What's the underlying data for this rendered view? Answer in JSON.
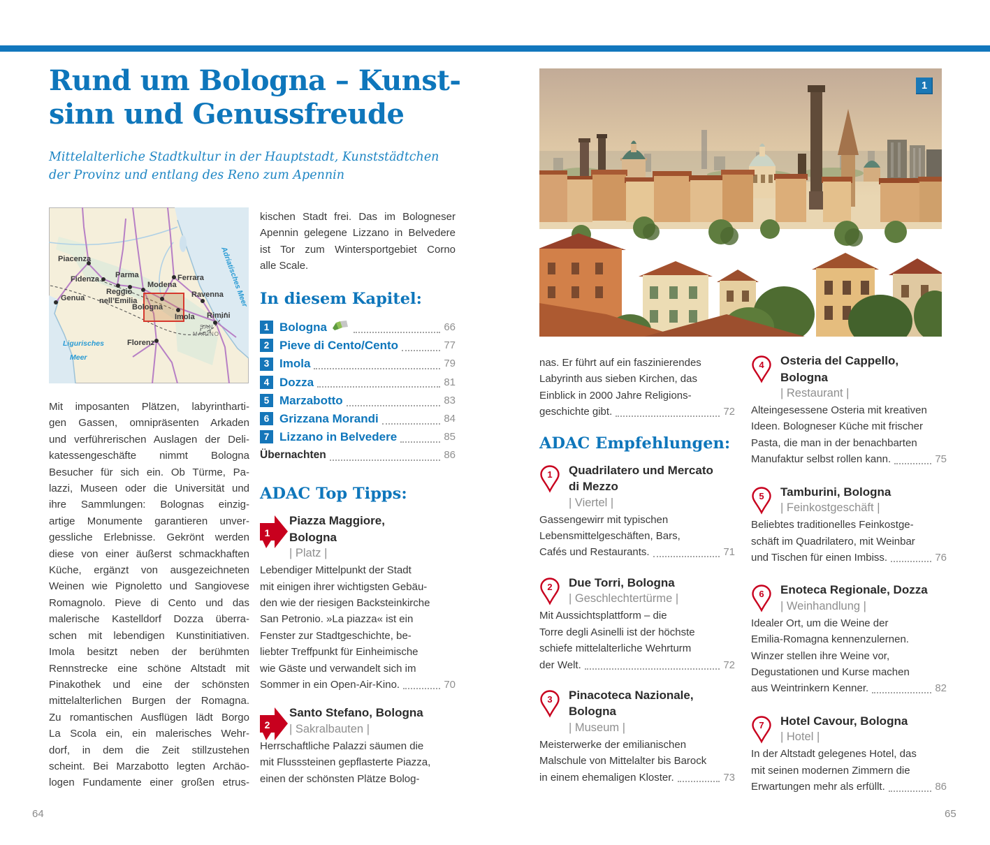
{
  "colors": {
    "accent_blue": "#0e76bb",
    "bar_blue": "#1277bd",
    "chapter_badge_blue": "#1576b9",
    "badge_red": "#c8001e",
    "body_text": "#3a3a3a",
    "muted_gray": "#8f8f8f"
  },
  "icons": {
    "chapter_map_icon": "folded-map",
    "tip_marker": "red-arrow-right",
    "rec_marker": "red-location-pin",
    "photo_badge": "blue-number-square"
  },
  "page": {
    "left_number": "64",
    "right_number": "65"
  },
  "header": {
    "title_lines": [
      "Rund um Bologna – Kunst-",
      "sinn und Genussfreude"
    ],
    "subtitle_lines": [
      "Mittelalterliche Stadtkultur in der Hauptstadt, Kunststädtchen",
      "der Provinz und entlang des Reno zum Apennin"
    ]
  },
  "map": {
    "cities": {
      "piacenza": "Piacenza",
      "fidenza": "Fidenza",
      "parma": "Parma",
      "reggio_line1": "Reggio",
      "reggio_line2": "nell’Emilia",
      "modena": "Modena",
      "ferrara": "Ferrara",
      "genua": "Genua",
      "bologna": "Bologna",
      "imola": "Imola",
      "ravenna": "Ravenna",
      "rimini": "Rimini",
      "florenz": "Florenz",
      "san_marino_line1": "SAN",
      "san_marino_line2": "MARINO"
    },
    "seas": {
      "adriatic": "Adriatisches Meer",
      "ligurian_line1": "Ligurisches",
      "ligurian_line2": "Meer"
    }
  },
  "intro": {
    "left_column_lines": [
      "Mit imposanten Plätzen, labyrintharti-",
      "gen Gassen, omnipräsenten Arkaden",
      "und verführerischen Auslagen der Deli-",
      "katessengeschäfte nimmt Bologna",
      "Besucher für sich ein. Ob Türme, Pa-",
      "lazzi, Museen oder die Universität und",
      "ihre Sammlungen: Bolognas einzig-",
      "artige Monumente garantieren unver-",
      "gessliche Erlebnisse. Gekrönt werden",
      "diese von einer äußerst schmackhaften",
      "Küche, ergänzt von ausgezeichneten",
      "Weinen wie Pignoletto und Sangiovese",
      "Romagnolo. Pieve di Cento und das",
      "malerische Kastelldorf Dozza überra-",
      "schen mit lebendigen Kunstinitiativen.",
      "Imola besitzt neben der berühmten",
      "Rennstrecke eine schöne Altstadt mit",
      "Pinakothek und eine der schönsten",
      "mittelalterlichen Burgen der Romagna.",
      "Zu romantischen Ausflügen lädt Borgo",
      "La Scola ein, ein malerisches Wehr-",
      "dorf, in dem die Zeit stillzustehen",
      "scheint. Bei Marzabotto legten Archäo-",
      "logen Fundamente einer großen etrus-"
    ],
    "middle_column_lines": [
      "kischen Stadt frei. Das im Bologneser",
      "Apennin gelegene Lizzano in Belvedere",
      "ist Tor zum Wintersportgebiet Corno",
      "alle Scale."
    ]
  },
  "chapter": {
    "heading": "In diesem Kapitel:",
    "items": [
      {
        "num": "1",
        "label": "Bologna",
        "page": "66"
      },
      {
        "num": "2",
        "label": "Pieve di Cento/Cento",
        "page": "77"
      },
      {
        "num": "3",
        "label": "Imola",
        "page": "79"
      },
      {
        "num": "4",
        "label": "Dozza",
        "page": "81"
      },
      {
        "num": "5",
        "label": "Marzabotto",
        "page": "83"
      },
      {
        "num": "6",
        "label": "Grizzana Morandi",
        "page": "84"
      },
      {
        "num": "7",
        "label": "Lizzano in Belvedere",
        "page": "85"
      }
    ],
    "extra_item": {
      "label": "Übernachten",
      "page": "86"
    }
  },
  "top_tipps": {
    "heading": "ADAC Top Tipps:",
    "items": [
      {
        "num": "1",
        "title_lines": [
          "Piazza Maggiore,",
          "Bologna"
        ],
        "category": "| Platz |",
        "body_lines": [
          "Lebendiger Mittelpunkt der Stadt",
          "mit einigen ihrer wichtigsten Gebäu-",
          "den wie der riesigen Backsteinkirche",
          "San Petronio. »La piazza« ist ein",
          "Fenster zur Stadtgeschichte, be-",
          "liebter Treffpunkt für Einheimische",
          "wie Gäste und verwandelt sich im"
        ],
        "last_line": "Sommer in ein Open-Air-Kino.",
        "page": "70"
      },
      {
        "num": "2",
        "title_lines": [
          "Santo Stefano, Bologna"
        ],
        "category": "| Sakralbauten |",
        "body_lines": [
          "Herrschaftliche Palazzi säumen die",
          "mit Flusssteinen gepflasterte Piazza,",
          "einen der schönsten Plätze Bolog-"
        ]
      }
    ]
  },
  "photo": {
    "badge": "1"
  },
  "right_page": {
    "intro_lines": [
      "nas. Er führt auf ein faszinierendes",
      "Labyrinth aus sieben Kirchen, das",
      "Einblick in 2000 Jahre Religions-"
    ],
    "intro_last_line": "geschichte gibt.",
    "intro_page": "72",
    "heading": "ADAC Empfehlungen:",
    "items": [
      {
        "num": "1",
        "title_lines": [
          "Quadrilatero und Mercato",
          "di Mezzo"
        ],
        "category": "| Viertel |",
        "body_lines": [
          "Gassengewirr mit typischen",
          "Lebensmittelgeschäften, Bars,"
        ],
        "last_line": "Cafés und Restaurants.",
        "page": "71"
      },
      {
        "num": "2",
        "title_lines": [
          "Due Torri, Bologna"
        ],
        "category": "| Geschlechtertürme |",
        "body_lines": [
          "Mit Aussichtsplattform – die",
          "Torre degli Asinelli ist der höchste",
          "schiefe mittelalterliche Wehrturm"
        ],
        "last_line": "der Welt.",
        "page": "72"
      },
      {
        "num": "3",
        "title_lines": [
          "Pinacoteca Nazionale,",
          "Bologna"
        ],
        "category": "| Museum |",
        "body_lines": [
          "Meisterwerke der emilianischen",
          "Malschule von Mittelalter bis Barock"
        ],
        "last_line": "in einem ehemaligen Kloster.",
        "page": "73"
      },
      {
        "num": "4",
        "title_lines": [
          "Osteria del Cappello,",
          "Bologna"
        ],
        "category": "| Restaurant |",
        "body_lines": [
          "Alteingesessene Osteria mit kreativen",
          "Ideen. Bologneser Küche mit frischer",
          "Pasta, die man in der benachbarten"
        ],
        "last_line": "Manufaktur selbst rollen kann.",
        "page": "75"
      },
      {
        "num": "5",
        "title_lines": [
          "Tamburini, Bologna"
        ],
        "category": "| Feinkostgeschäft |",
        "body_lines": [
          "Beliebtes traditionelles Feinkostge-",
          "schäft im Quadrilatero, mit Weinbar"
        ],
        "last_line": "und Tischen für einen Imbiss.",
        "page": "76"
      },
      {
        "num": "6",
        "title_lines": [
          "Enoteca Regionale, Dozza"
        ],
        "category": "| Weinhandlung |",
        "body_lines": [
          "Idealer Ort, um die Weine der",
          "Emilia-Romagna kennenzulernen.",
          "Winzer stellen ihre Weine vor,",
          "Degustationen und Kurse machen"
        ],
        "last_line": "aus Weintrinkern Kenner.",
        "page": "82"
      },
      {
        "num": "7",
        "title_lines": [
          "Hotel Cavour, Bologna"
        ],
        "category": "| Hotel |",
        "body_lines": [
          "In der Altstadt gelegenes Hotel, das",
          "mit seinen modernen Zimmern die"
        ],
        "last_line": "Erwartungen mehr als erfüllt.",
        "page": "86"
      }
    ]
  }
}
